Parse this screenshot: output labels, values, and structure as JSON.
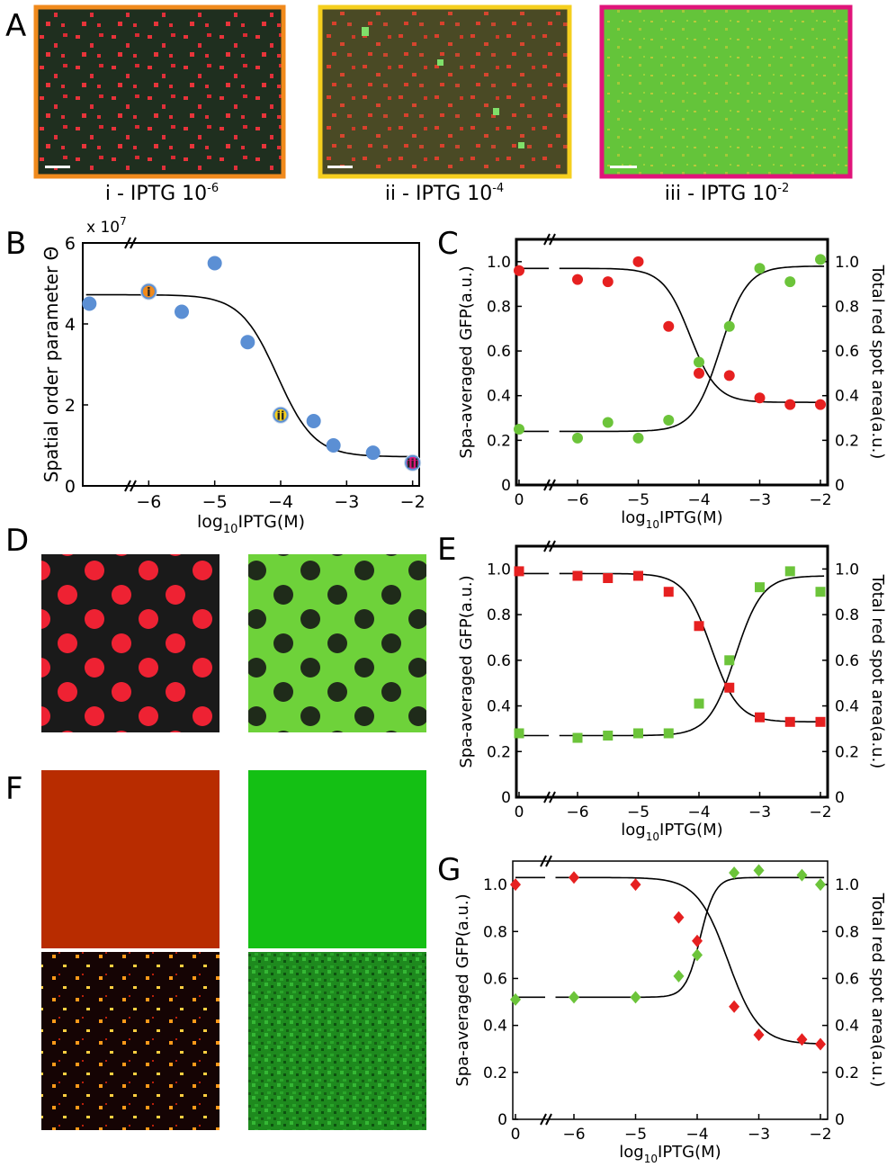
{
  "panel_letters": [
    "A",
    "B",
    "C",
    "D",
    "E",
    "F",
    "G"
  ],
  "micrographs": [
    {
      "caption_prefix": "i - IPTG 10",
      "caption_exp": "-6",
      "frame_color": "#f08a1c"
    },
    {
      "caption_prefix": "ii - IPTG 10",
      "caption_exp": "-4",
      "frame_color": "#f5cf1e"
    },
    {
      "caption_prefix": "iii - IPTG 10",
      "caption_exp": "-2",
      "frame_color": "#e0147a"
    }
  ],
  "chart_data": [
    {
      "id": "B",
      "type": "scatter",
      "ylabel": "Spatial order parameter Θ",
      "xlabel_prefix": "log",
      "xlabel_sub": "10",
      "xlabel_suffix": "IPTG(M)",
      "multiplier_prefix": "x 10",
      "multiplier_exp": "7",
      "xlim": [
        -7,
        -1.9
      ],
      "ylim": [
        0,
        6
      ],
      "xticks": [
        -6,
        -5,
        -4,
        -3,
        -2
      ],
      "yticks": [
        0,
        2,
        4,
        6
      ],
      "points": [
        {
          "x": -6.9,
          "y": 4.5
        },
        {
          "x": -6.0,
          "y": 4.8,
          "label": "i"
        },
        {
          "x": -5.5,
          "y": 4.3
        },
        {
          "x": -5.0,
          "y": 5.5
        },
        {
          "x": -4.5,
          "y": 3.55
        },
        {
          "x": -4.0,
          "y": 1.75,
          "label": "ii"
        },
        {
          "x": -3.5,
          "y": 1.6
        },
        {
          "x": -3.2,
          "y": 1.0
        },
        {
          "x": -2.6,
          "y": 0.82
        },
        {
          "x": -2.0,
          "y": 0.57,
          "label": "iii"
        }
      ],
      "point_labels": [
        "i",
        "ii",
        "iii"
      ],
      "label_colors": [
        "#f08a1c",
        "#f5cf1e",
        "#e0147a"
      ],
      "point_color": "#5b8fd4"
    },
    {
      "id": "C",
      "type": "scatter",
      "marker": "circle",
      "ylabel": "Spa-averaged GFP(a.u.)",
      "ylabel_right": "Total red spot area(a.u.)",
      "xlabel_prefix": "log",
      "xlabel_sub": "10",
      "xlabel_suffix": "IPTG(M)",
      "xtick_labels": [
        "0",
        "-6",
        "-5",
        "-4",
        "-3",
        "-2"
      ],
      "yticks": [
        0,
        0.2,
        0.4,
        0.6,
        0.8,
        1.0
      ],
      "ytick_labels": [
        "0",
        "0.2",
        "0.4",
        "0.6",
        "0.8",
        "1.0"
      ],
      "series": [
        {
          "name": "",
          "color": "#e62020",
          "points": [
            {
              "x": 0,
              "y": 0.96
            },
            {
              "x": -6,
              "y": 0.92
            },
            {
              "x": -5.5,
              "y": 0.91
            },
            {
              "x": -5,
              "y": 1.0
            },
            {
              "x": -4.5,
              "y": 0.71
            },
            {
              "x": -4,
              "y": 0.5
            },
            {
              "x": -3.5,
              "y": 0.49
            },
            {
              "x": -3,
              "y": 0.39
            },
            {
              "x": -2.5,
              "y": 0.36
            },
            {
              "x": -2,
              "y": 0.36
            }
          ]
        },
        {
          "name": "",
          "color": "#6cc43a",
          "points": [
            {
              "x": 0,
              "y": 0.25
            },
            {
              "x": -6,
              "y": 0.21
            },
            {
              "x": -5.5,
              "y": 0.28
            },
            {
              "x": -5,
              "y": 0.21
            },
            {
              "x": -4.5,
              "y": 0.29
            },
            {
              "x": -4,
              "y": 0.55
            },
            {
              "x": -3.5,
              "y": 0.71
            },
            {
              "x": -3,
              "y": 0.97
            },
            {
              "x": -2.5,
              "y": 0.91
            },
            {
              "x": -2,
              "y": 1.01
            }
          ]
        }
      ]
    },
    {
      "id": "E",
      "type": "scatter",
      "marker": "square",
      "ylabel": "Spa-averaged GFP(a.u.)",
      "ylabel_right": "Total red spot area(a.u.)",
      "xlabel_prefix": "log",
      "xlabel_sub": "10",
      "xlabel_suffix": "IPTG(M)",
      "xtick_labels": [
        "0",
        "-6",
        "-5",
        "-4",
        "-3",
        "-2"
      ],
      "yticks": [
        0,
        0.2,
        0.4,
        0.6,
        0.8,
        1.0
      ],
      "ytick_labels": [
        "0",
        "0.2",
        "0.4",
        "0.6",
        "0.8",
        "1.0"
      ],
      "series": [
        {
          "name": "",
          "color": "#e62020",
          "points": [
            {
              "x": 0,
              "y": 0.99
            },
            {
              "x": -6,
              "y": 0.97
            },
            {
              "x": -5.5,
              "y": 0.96
            },
            {
              "x": -5,
              "y": 0.97
            },
            {
              "x": -4.5,
              "y": 0.9
            },
            {
              "x": -4,
              "y": 0.75
            },
            {
              "x": -3.5,
              "y": 0.48
            },
            {
              "x": -3,
              "y": 0.35
            },
            {
              "x": -2.5,
              "y": 0.33
            },
            {
              "x": -2,
              "y": 0.33
            }
          ]
        },
        {
          "name": "",
          "color": "#6cc43a",
          "points": [
            {
              "x": 0,
              "y": 0.28
            },
            {
              "x": -6,
              "y": 0.26
            },
            {
              "x": -5.5,
              "y": 0.27
            },
            {
              "x": -5,
              "y": 0.28
            },
            {
              "x": -4.5,
              "y": 0.28
            },
            {
              "x": -4,
              "y": 0.41
            },
            {
              "x": -3.5,
              "y": 0.6
            },
            {
              "x": -3,
              "y": 0.92
            },
            {
              "x": -2.5,
              "y": 0.99
            },
            {
              "x": -2,
              "y": 0.9
            }
          ]
        }
      ]
    },
    {
      "id": "G",
      "type": "scatter",
      "marker": "diamond",
      "ylabel": "Spa-averaged GFP(a.u.)",
      "ylabel_right": "Total red spot area(a.u.)",
      "xlabel_prefix": "log",
      "xlabel_sub": "10",
      "xlabel_suffix": "IPTG(M)",
      "xtick_labels": [
        "0",
        "-6",
        "-5",
        "-4",
        "-3",
        "-2"
      ],
      "yticks": [
        0,
        0.2,
        0.4,
        0.6,
        0.8,
        1.0
      ],
      "ytick_labels": [
        "0",
        "0.2",
        "0.4",
        "0.6",
        "0.8",
        "1.0"
      ],
      "series": [
        {
          "name": "",
          "color": "#e62020",
          "points": [
            {
              "x": 0,
              "y": 1.0
            },
            {
              "x": -6,
              "y": 1.03
            },
            {
              "x": -5,
              "y": 1.0
            },
            {
              "x": -4.3,
              "y": 0.86
            },
            {
              "x": -4.0,
              "y": 0.76
            },
            {
              "x": -3.4,
              "y": 0.48
            },
            {
              "x": -3.0,
              "y": 0.36
            },
            {
              "x": -2.3,
              "y": 0.34
            },
            {
              "x": -2.0,
              "y": 0.32
            }
          ]
        },
        {
          "name": "",
          "color": "#6cc43a",
          "points": [
            {
              "x": 0,
              "y": 0.51
            },
            {
              "x": -6,
              "y": 0.52
            },
            {
              "x": -5,
              "y": 0.52
            },
            {
              "x": -4.3,
              "y": 0.61
            },
            {
              "x": -4.0,
              "y": 0.7
            },
            {
              "x": -3.4,
              "y": 1.05
            },
            {
              "x": -3.0,
              "y": 1.06
            },
            {
              "x": -2.3,
              "y": 1.04
            },
            {
              "x": -2.0,
              "y": 1.0
            }
          ]
        }
      ]
    }
  ]
}
